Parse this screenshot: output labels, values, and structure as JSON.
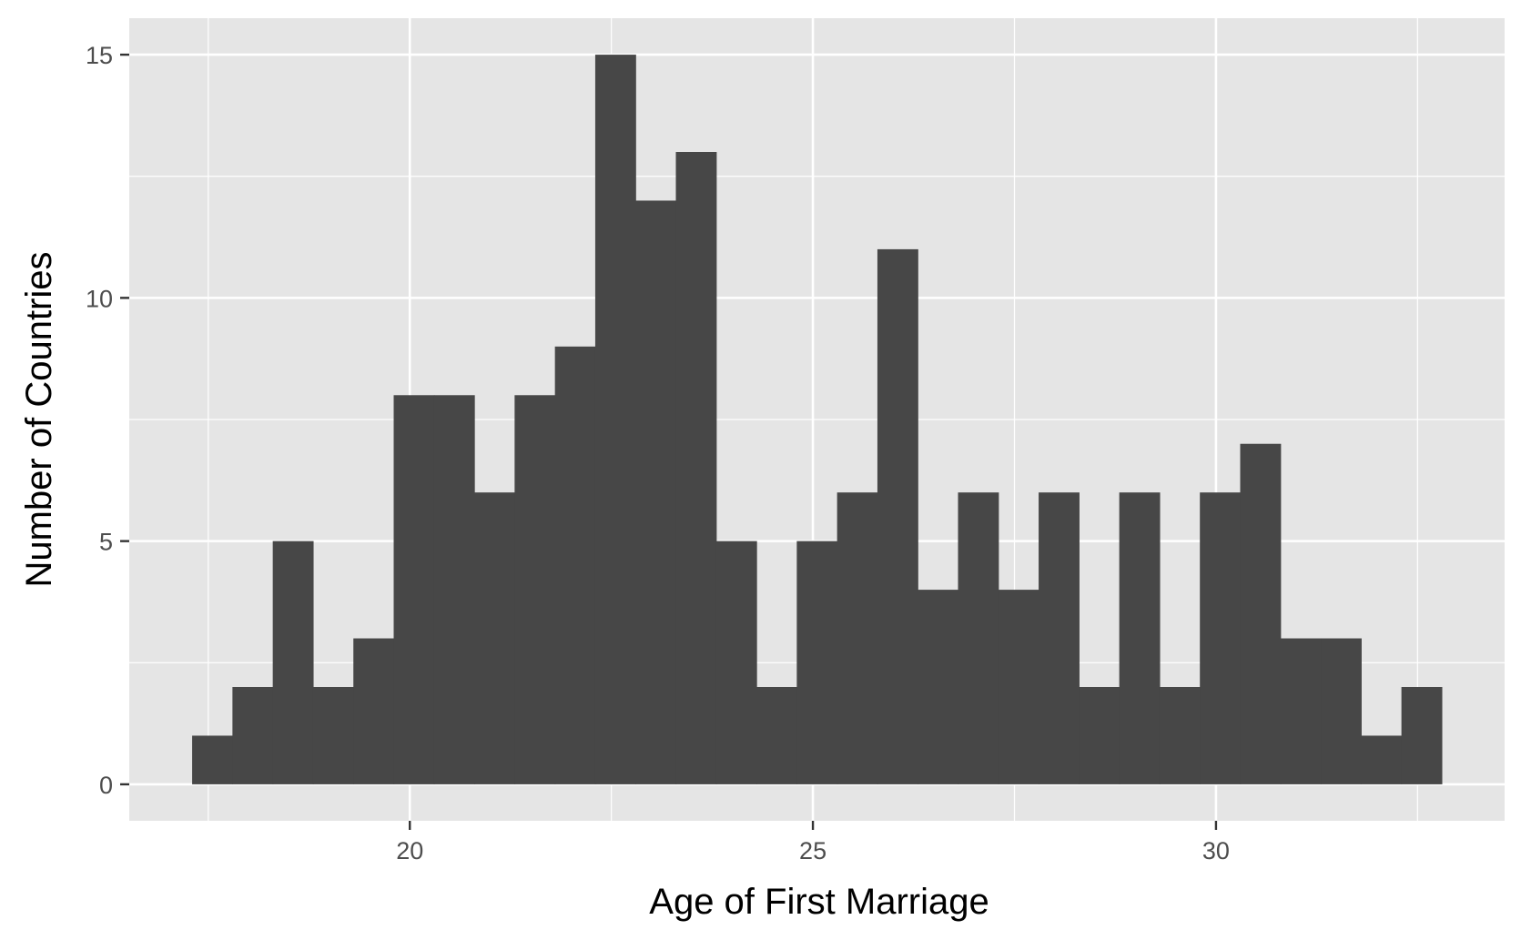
{
  "chart_data": {
    "type": "bar",
    "subtype": "histogram",
    "xlabel": "Age of First Marriage",
    "ylabel": "Number of Countries",
    "bin_width": 0.5,
    "bins": [
      {
        "x0": 17.3,
        "x1": 17.8,
        "count": 1
      },
      {
        "x0": 17.8,
        "x1": 18.3,
        "count": 2
      },
      {
        "x0": 18.3,
        "x1": 18.8,
        "count": 5
      },
      {
        "x0": 18.8,
        "x1": 19.3,
        "count": 2
      },
      {
        "x0": 19.3,
        "x1": 19.8,
        "count": 3
      },
      {
        "x0": 19.8,
        "x1": 20.3,
        "count": 8
      },
      {
        "x0": 20.3,
        "x1": 20.8,
        "count": 8
      },
      {
        "x0": 20.8,
        "x1": 21.3,
        "count": 6
      },
      {
        "x0": 21.3,
        "x1": 21.8,
        "count": 8
      },
      {
        "x0": 21.8,
        "x1": 22.3,
        "count": 9
      },
      {
        "x0": 22.3,
        "x1": 22.8,
        "count": 15
      },
      {
        "x0": 22.8,
        "x1": 23.3,
        "count": 12
      },
      {
        "x0": 23.3,
        "x1": 23.8,
        "count": 13
      },
      {
        "x0": 23.8,
        "x1": 24.3,
        "count": 5
      },
      {
        "x0": 24.3,
        "x1": 24.8,
        "count": 2
      },
      {
        "x0": 24.8,
        "x1": 25.3,
        "count": 5
      },
      {
        "x0": 25.3,
        "x1": 25.8,
        "count": 6
      },
      {
        "x0": 25.8,
        "x1": 26.3,
        "count": 11
      },
      {
        "x0": 26.3,
        "x1": 26.8,
        "count": 4
      },
      {
        "x0": 26.8,
        "x1": 27.3,
        "count": 6
      },
      {
        "x0": 27.3,
        "x1": 27.8,
        "count": 4
      },
      {
        "x0": 27.8,
        "x1": 28.3,
        "count": 6
      },
      {
        "x0": 28.3,
        "x1": 28.8,
        "count": 2
      },
      {
        "x0": 28.8,
        "x1": 29.3,
        "count": 6
      },
      {
        "x0": 29.3,
        "x1": 29.8,
        "count": 2
      },
      {
        "x0": 29.8,
        "x1": 30.3,
        "count": 6
      },
      {
        "x0": 30.3,
        "x1": 30.8,
        "count": 7
      },
      {
        "x0": 30.8,
        "x1": 31.3,
        "count": 3
      },
      {
        "x0": 31.3,
        "x1": 31.8,
        "count": 3
      },
      {
        "x0": 31.8,
        "x1": 32.3,
        "count": 1
      },
      {
        "x0": 32.3,
        "x1": 32.8,
        "count": 2
      }
    ],
    "xlim": [
      16.52,
      33.58
    ],
    "ylim": [
      -0.75,
      15.75
    ],
    "x_ticks": [
      20,
      25,
      30
    ],
    "y_ticks": [
      0,
      5,
      10,
      15
    ],
    "grid": true,
    "legend": "none",
    "colors": {
      "bar": "#474747",
      "panel": "#e5e5e5",
      "grid": "#ffffff",
      "tick_text": "#4d4d4d",
      "tick_mark": "#333333",
      "axis_title": "#000000"
    }
  }
}
